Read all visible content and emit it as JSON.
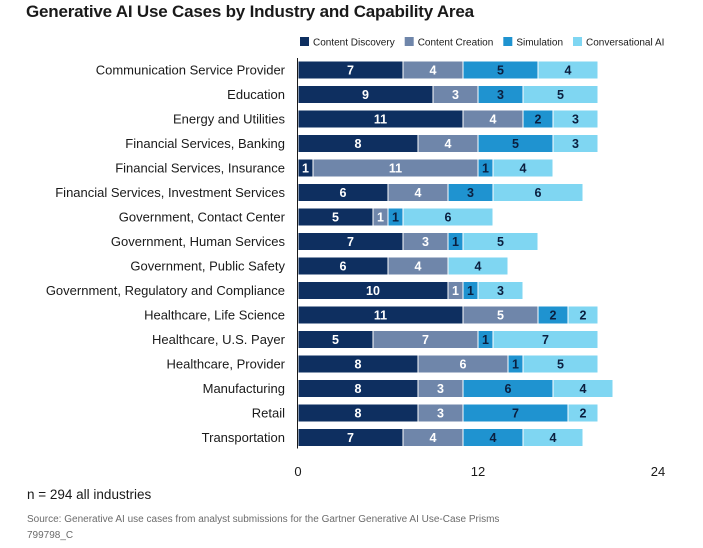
{
  "chart_data": {
    "type": "bar",
    "orientation": "horizontal",
    "stacked": true,
    "title": "Generative AI Use Cases by Industry and Capability Area",
    "categories": [
      "Communication Service Provider",
      "Education",
      "Energy and Utilities",
      "Financial Services, Banking",
      "Financial Services, Insurance",
      "Financial Services, Investment Services",
      "Government, Contact Center",
      "Government, Human Services",
      "Government, Public Safety",
      "Government, Regulatory and Compliance",
      "Healthcare, Life Science",
      "Healthcare, U.S. Payer",
      "Healthcare, Provider",
      "Manufacturing",
      "Retail",
      "Transportation"
    ],
    "series": [
      {
        "name": "Content Discovery",
        "color": "#0e2f60",
        "values": [
          7,
          9,
          11,
          8,
          1,
          6,
          5,
          7,
          6,
          10,
          11,
          5,
          8,
          8,
          8,
          7
        ]
      },
      {
        "name": "Content Creation",
        "color": "#6f86aa",
        "values": [
          4,
          3,
          4,
          4,
          11,
          4,
          1,
          3,
          4,
          1,
          5,
          7,
          6,
          3,
          3,
          4
        ]
      },
      {
        "name": "Simulation",
        "color": "#1f93d0",
        "values": [
          5,
          3,
          2,
          5,
          1,
          3,
          1,
          1,
          0,
          1,
          2,
          1,
          1,
          6,
          7,
          4
        ]
      },
      {
        "name": "Conversational AI",
        "color": "#7fd6f2",
        "values": [
          4,
          5,
          3,
          3,
          4,
          6,
          6,
          5,
          4,
          3,
          2,
          7,
          5,
          4,
          2,
          4
        ]
      }
    ],
    "label_colors": [
      "#ffffff",
      "#ffffff",
      "#0b1f3f",
      "#0b1f3f"
    ],
    "xlim": [
      0,
      24
    ],
    "xticks": [
      0,
      12,
      24
    ],
    "xlabel": "",
    "ylabel": "",
    "legend_position": "top-right",
    "grid": false
  },
  "note": "n = 294 all industries",
  "source": "Source: Generative AI use cases from analyst submissions for the Gartner Generative AI Use-Case Prisms",
  "doc_id": "799798_C"
}
